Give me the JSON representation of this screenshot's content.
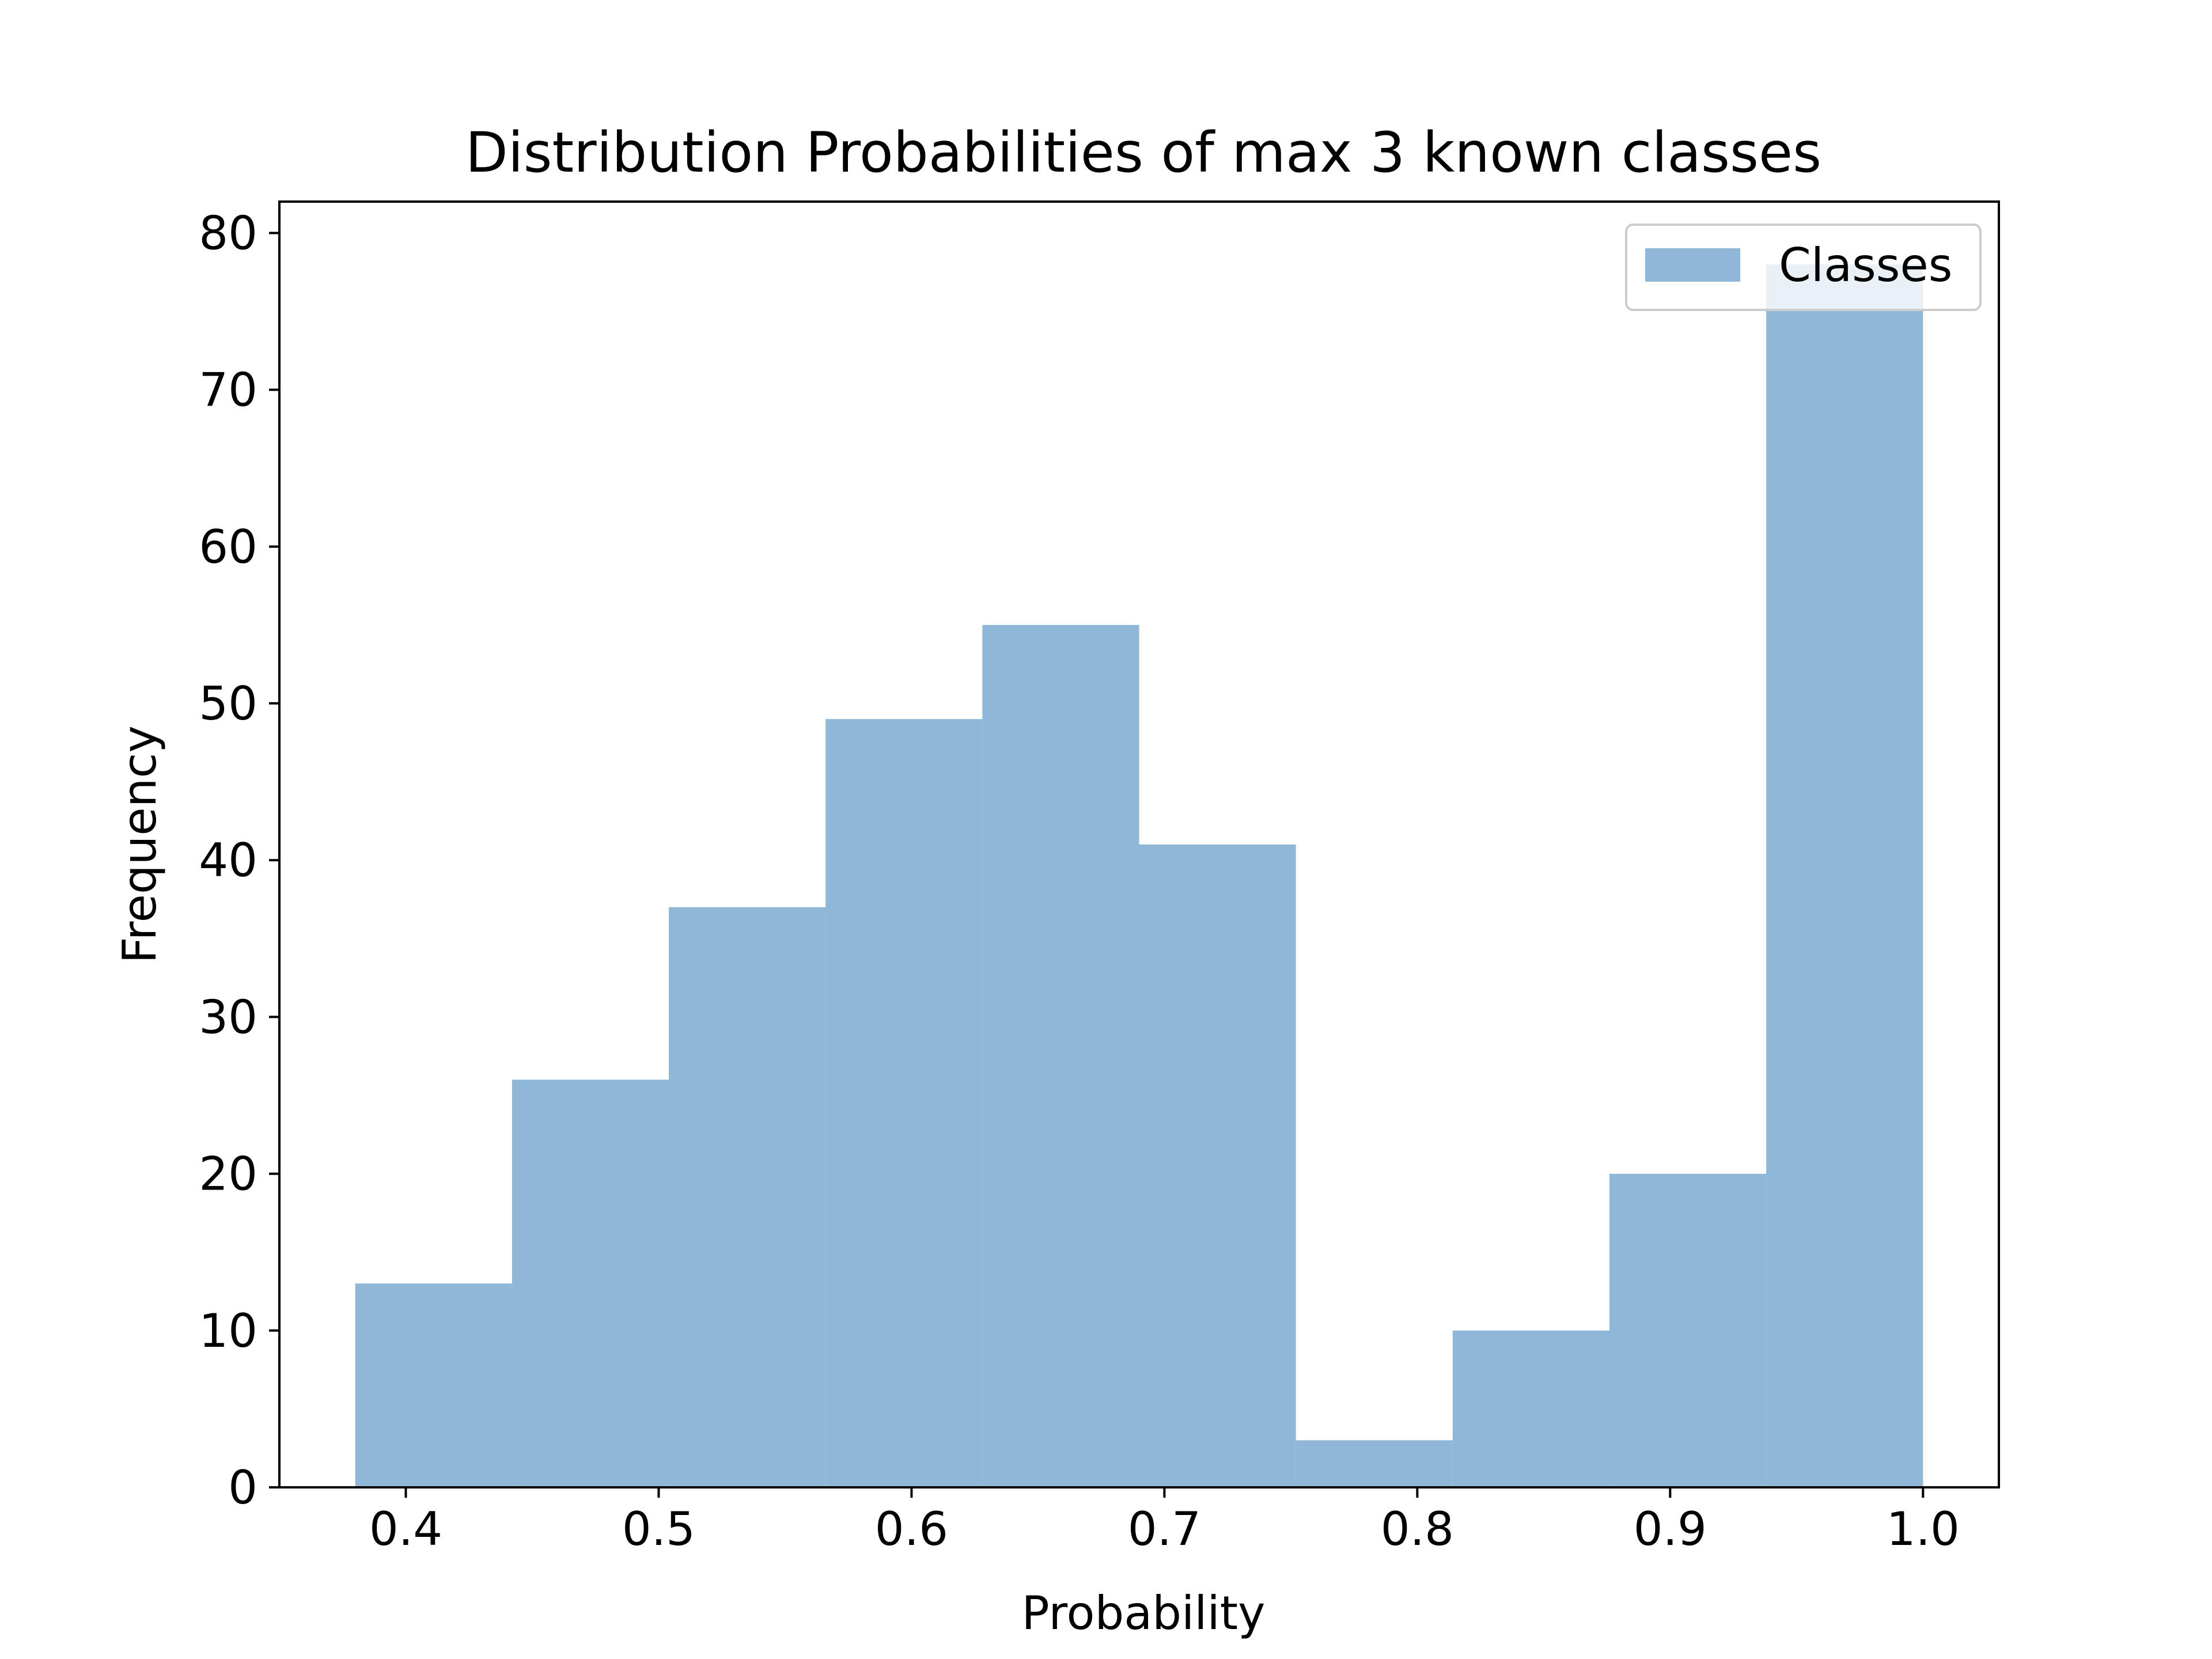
{
  "chart_data": {
    "type": "bar",
    "title": "Distribution Probabilities of max 3 known classes",
    "xlabel": "Probability",
    "ylabel": "Frequency",
    "xlim": [
      0.35,
      1.03
    ],
    "ylim": [
      0,
      82
    ],
    "xticks": [
      0.4,
      0.5,
      0.6,
      0.7,
      0.8,
      0.9,
      1.0
    ],
    "xtick_labels": [
      "0.4",
      "0.5",
      "0.6",
      "0.7",
      "0.8",
      "0.9",
      "1.0"
    ],
    "yticks": [
      0,
      10,
      20,
      30,
      40,
      50,
      60,
      70,
      80
    ],
    "ytick_labels": [
      "0",
      "10",
      "20",
      "30",
      "40",
      "50",
      "60",
      "70",
      "80"
    ],
    "bin_edges": [
      0.38,
      0.442,
      0.504,
      0.566,
      0.628,
      0.69,
      0.752,
      0.814,
      0.876,
      0.938,
      1.0
    ],
    "series": [
      {
        "name": "Classes",
        "color": "#8fb8d8",
        "values": [
          13,
          26,
          37,
          49,
          55,
          41,
          3,
          10,
          20,
          78
        ]
      }
    ],
    "legend": {
      "position": "top-right",
      "entries": [
        "Classes"
      ]
    },
    "grid": false
  }
}
